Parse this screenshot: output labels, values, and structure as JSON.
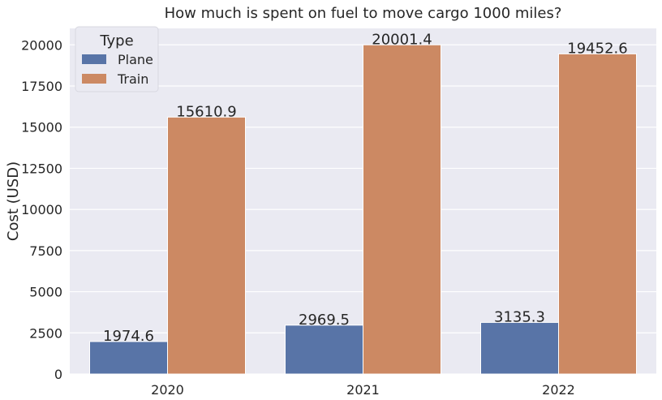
{
  "chart_data": {
    "type": "bar",
    "title": "How much is spent on fuel to move cargo 1000 miles?",
    "xlabel": "",
    "ylabel": "Cost (USD)",
    "categories": [
      "2020",
      "2021",
      "2022"
    ],
    "series": [
      {
        "name": "Plane",
        "values": [
          1974.6,
          2969.5,
          3135.3
        ],
        "labels": [
          "1974.6",
          "2969.5",
          "3135.3"
        ],
        "color": "#5874a7"
      },
      {
        "name": "Train",
        "values": [
          15610.9,
          20001.4,
          19452.6
        ],
        "labels": [
          "15610.9",
          "20001.4",
          "19452.6"
        ],
        "color": "#cc8963"
      }
    ],
    "ylim": [
      0,
      21000
    ],
    "yticks": [
      0,
      2500,
      5000,
      7500,
      10000,
      12500,
      15000,
      17500,
      20000
    ],
    "grid": true,
    "legend": {
      "title": "Type",
      "placement": "top-left"
    },
    "background_color": "#eaeaf2",
    "grid_color": "#ffffff"
  }
}
